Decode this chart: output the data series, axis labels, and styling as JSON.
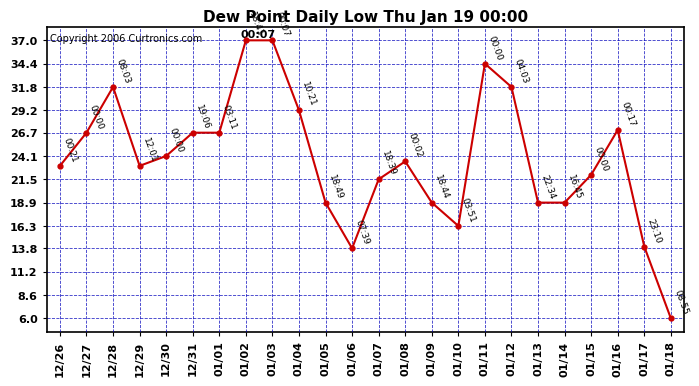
{
  "title": "Dew Point Daily Low Thu Jan 19 00:00",
  "copyright": "Copyright 2006 Curtronics.com",
  "peak_label": "00:07",
  "x_labels": [
    "12/26",
    "12/27",
    "12/28",
    "12/29",
    "12/30",
    "12/31",
    "01/01",
    "01/02",
    "01/03",
    "01/04",
    "01/05",
    "01/06",
    "01/07",
    "01/08",
    "01/09",
    "01/10",
    "01/11",
    "01/12",
    "01/13",
    "01/14",
    "01/15",
    "01/16",
    "01/17",
    "01/18"
  ],
  "y_values": [
    23.0,
    26.7,
    31.8,
    23.0,
    24.1,
    26.7,
    26.7,
    37.0,
    37.0,
    29.2,
    18.9,
    13.8,
    21.5,
    23.5,
    18.9,
    16.3,
    34.4,
    31.8,
    18.9,
    18.9,
    22.0,
    27.0,
    14.0,
    6.0
  ],
  "point_labels": [
    "00:21",
    "00:00",
    "08:03",
    "12:01",
    "00:00",
    "19:06",
    "03:11",
    "18:41",
    "00:07",
    "10:21",
    "18:49",
    "07:39",
    "18:39",
    "00:02",
    "18:44",
    "03:51",
    "00:00",
    "04:03",
    "22:34",
    "16:45",
    "00:00",
    "00:17",
    "23:10",
    "08:55"
  ],
  "yticks": [
    6.0,
    8.6,
    11.2,
    13.8,
    16.3,
    18.9,
    21.5,
    24.1,
    26.7,
    29.2,
    31.8,
    34.4,
    37.0
  ],
  "ymin": 4.5,
  "ymax": 38.5,
  "line_color": "#cc0000",
  "marker_color": "#cc0000",
  "bg_color": "#ffffff",
  "grid_color": "#0000bb",
  "title_fontsize": 11,
  "label_fontsize": 6.5,
  "tick_fontsize": 8,
  "copyright_fontsize": 7,
  "peak_label_fontsize": 8,
  "label_rotation": -70,
  "figwidth": 6.9,
  "figheight": 3.75,
  "dpi": 100
}
